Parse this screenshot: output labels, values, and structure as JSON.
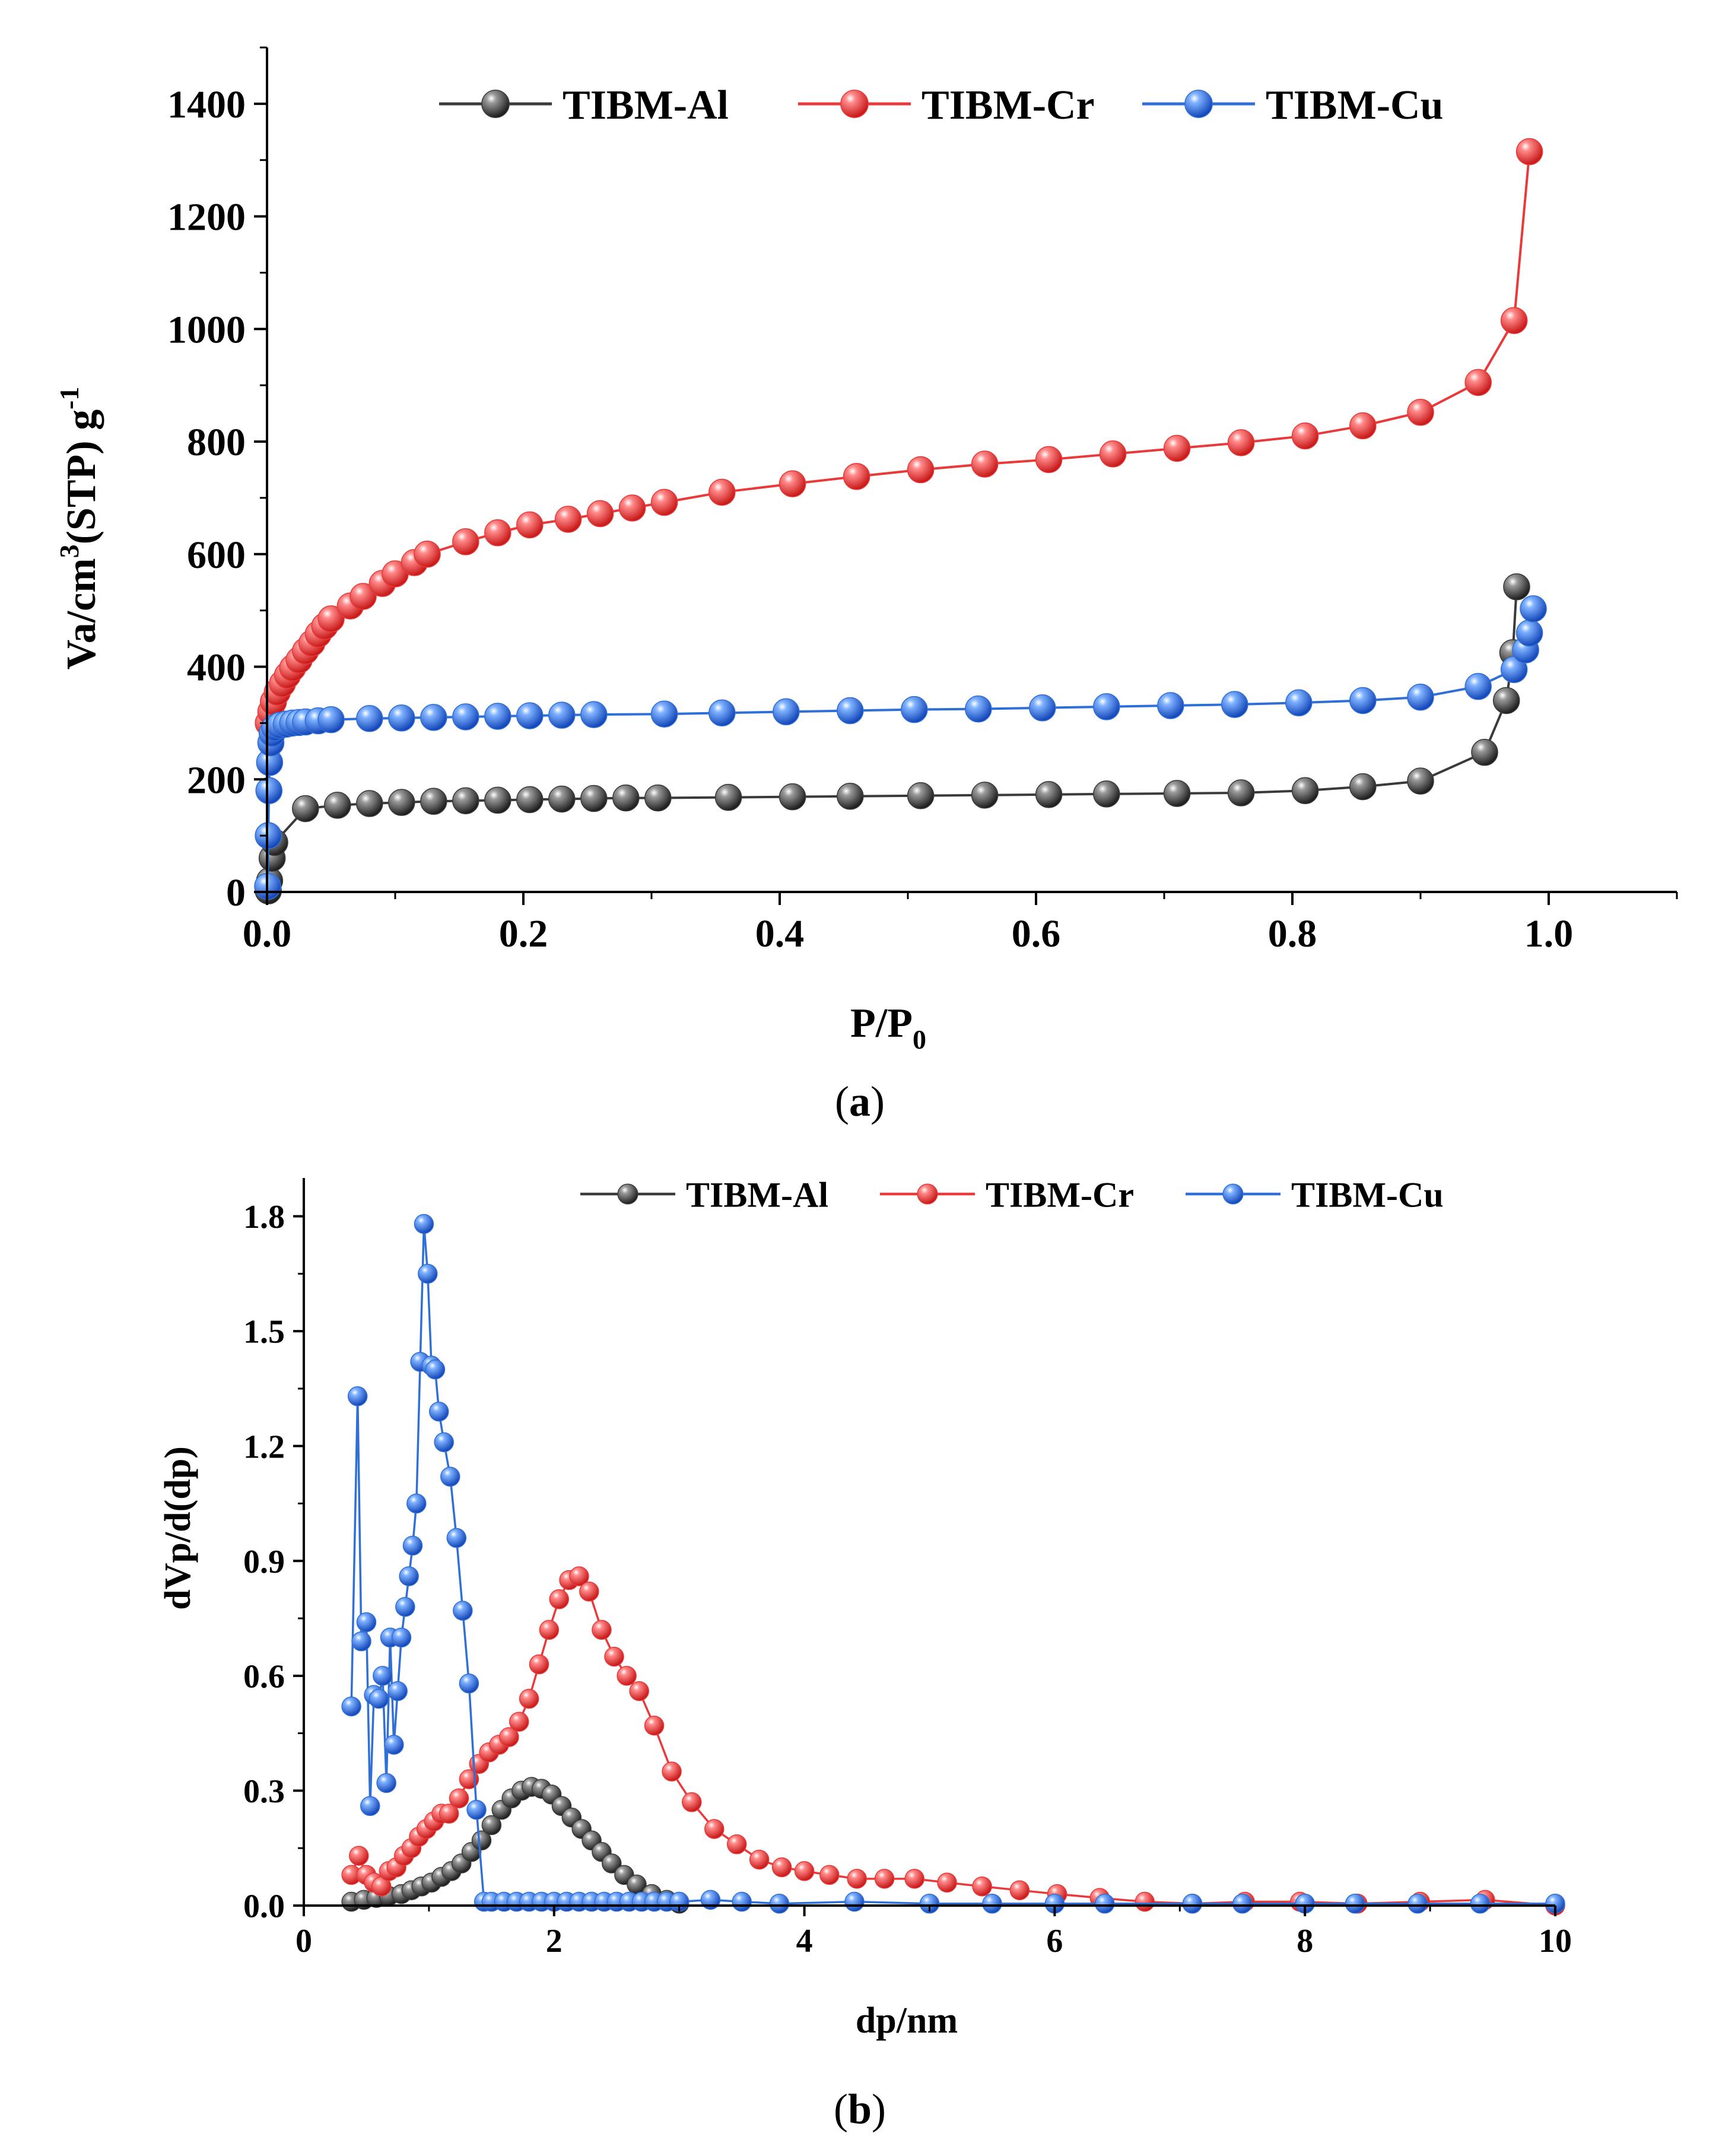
{
  "chart_data": [
    {
      "type": "line",
      "panel": "a",
      "caption_letter": "a",
      "xlabel_main": "P/P",
      "xlabel_sub": "0",
      "ylabel_pre": "Va/cm",
      "ylabel_sup1": "3",
      "ylabel_mid": "(STP) g",
      "ylabel_sup2": "-1",
      "xlim": [
        0,
        1.1
      ],
      "ylim": [
        0,
        1500
      ],
      "xticks": [
        0.0,
        0.2,
        0.4,
        0.6,
        0.8,
        1.0
      ],
      "xtick_labels": [
        "0.0",
        "0.2",
        "0.4",
        "0.6",
        "0.8",
        "1.0"
      ],
      "yticks": [
        0,
        200,
        400,
        600,
        800,
        1000,
        1200,
        1400
      ],
      "ytick_labels": [
        "0",
        "200",
        "400",
        "600",
        "800",
        "1000",
        "1200",
        "1400"
      ],
      "legend_position": "top",
      "series": [
        {
          "name": "TIBM-Al",
          "color": "#3a3a3a",
          "x": [
            0.001,
            0.002,
            0.004,
            0.006,
            0.03,
            0.055,
            0.08,
            0.105,
            0.13,
            0.155,
            0.18,
            0.205,
            0.23,
            0.255,
            0.28,
            0.305,
            0.36,
            0.41,
            0.455,
            0.51,
            0.56,
            0.61,
            0.655,
            0.71,
            0.76,
            0.81,
            0.855,
            0.9,
            0.95,
            0.967,
            0.972,
            0.975
          ],
          "y": [
            2,
            20,
            60,
            88,
            148,
            154,
            157,
            159,
            161,
            162,
            163,
            164,
            165,
            166,
            167,
            167,
            168,
            169,
            170,
            171,
            172,
            173,
            174,
            175,
            176,
            180,
            187,
            197,
            248,
            340,
            425,
            542
          ]
        },
        {
          "name": "TIBM-Cr",
          "color": "#e83a3a",
          "x": [
            0.001,
            0.003,
            0.005,
            0.008,
            0.012,
            0.016,
            0.02,
            0.025,
            0.03,
            0.035,
            0.04,
            0.045,
            0.05,
            0.065,
            0.075,
            0.09,
            0.1,
            0.115,
            0.125,
            0.155,
            0.18,
            0.205,
            0.235,
            0.26,
            0.285,
            0.31,
            0.355,
            0.41,
            0.46,
            0.51,
            0.56,
            0.61,
            0.66,
            0.71,
            0.76,
            0.81,
            0.855,
            0.9,
            0.945,
            0.973,
            0.985
          ],
          "y": [
            300,
            320,
            338,
            355,
            370,
            385,
            398,
            412,
            428,
            442,
            458,
            472,
            485,
            508,
            525,
            548,
            565,
            585,
            600,
            622,
            638,
            652,
            662,
            672,
            682,
            692,
            710,
            725,
            738,
            750,
            760,
            768,
            778,
            788,
            798,
            810,
            828,
            852,
            905,
            1015,
            1315
          ]
        },
        {
          "name": "TIBM-Cu",
          "color": "#2f6fd6",
          "x": [
            0.0005,
            0.001,
            0.0015,
            0.002,
            0.003,
            0.004,
            0.006,
            0.01,
            0.015,
            0.02,
            0.025,
            0.03,
            0.04,
            0.05,
            0.08,
            0.105,
            0.13,
            0.155,
            0.18,
            0.205,
            0.23,
            0.255,
            0.31,
            0.355,
            0.405,
            0.455,
            0.505,
            0.555,
            0.605,
            0.655,
            0.705,
            0.755,
            0.805,
            0.855,
            0.9,
            0.945,
            0.973,
            0.982,
            0.985,
            0.988
          ],
          "y": [
            10,
            100,
            180,
            230,
            265,
            282,
            292,
            296,
            298,
            300,
            301,
            302,
            304,
            306,
            308,
            309,
            310,
            311,
            312,
            313,
            314,
            315,
            316,
            318,
            320,
            322,
            324,
            325,
            327,
            329,
            331,
            333,
            336,
            340,
            346,
            365,
            395,
            430,
            460,
            503
          ]
        }
      ]
    },
    {
      "type": "line",
      "panel": "b",
      "caption_letter": "b",
      "xlabel": "dp/nm",
      "ylabel": "dVp/d(dp)",
      "xlim": [
        0,
        10
      ],
      "ylim": [
        0,
        1.9
      ],
      "xticks": [
        0,
        2,
        4,
        6,
        8,
        10
      ],
      "xtick_labels": [
        "0",
        "2",
        "4",
        "6",
        "8",
        "10"
      ],
      "yticks": [
        0.0,
        0.3,
        0.6,
        0.9,
        1.2,
        1.5,
        1.8
      ],
      "ytick_labels": [
        "0.0",
        "0.3",
        "0.6",
        "0.9",
        "1.2",
        "1.5",
        "1.8"
      ],
      "legend_position": "top",
      "series": [
        {
          "name": "TIBM-Al",
          "color": "#3a3a3a",
          "x": [
            0.38,
            0.48,
            0.58,
            0.68,
            0.78,
            0.86,
            0.94,
            1.02,
            1.1,
            1.18,
            1.26,
            1.34,
            1.42,
            1.5,
            1.58,
            1.66,
            1.74,
            1.82,
            1.9,
            1.98,
            2.06,
            2.14,
            2.22,
            2.3,
            2.38,
            2.46,
            2.56,
            2.66,
            2.78,
            2.9,
            3.0
          ],
          "y": [
            0.01,
            0.015,
            0.02,
            0.025,
            0.03,
            0.04,
            0.05,
            0.06,
            0.075,
            0.09,
            0.11,
            0.14,
            0.17,
            0.21,
            0.25,
            0.28,
            0.3,
            0.31,
            0.305,
            0.29,
            0.26,
            0.23,
            0.2,
            0.17,
            0.14,
            0.11,
            0.08,
            0.055,
            0.03,
            0.015,
            0.005
          ]
        },
        {
          "name": "TIBM-Cr",
          "color": "#e83a3a",
          "x": [
            0.38,
            0.44,
            0.5,
            0.56,
            0.62,
            0.68,
            0.74,
            0.8,
            0.86,
            0.92,
            0.98,
            1.04,
            1.1,
            1.16,
            1.24,
            1.32,
            1.4,
            1.48,
            1.56,
            1.64,
            1.72,
            1.8,
            1.88,
            1.96,
            2.04,
            2.12,
            2.2,
            2.28,
            2.38,
            2.48,
            2.58,
            2.68,
            2.8,
            2.94,
            3.1,
            3.28,
            3.46,
            3.64,
            3.82,
            4.0,
            4.2,
            4.42,
            4.64,
            4.88,
            5.14,
            5.42,
            5.72,
            6.02,
            6.36,
            6.72,
            7.1,
            7.52,
            7.96,
            8.42,
            8.92,
            9.44,
            10.0
          ],
          "y": [
            0.08,
            0.13,
            0.08,
            0.06,
            0.05,
            0.09,
            0.1,
            0.13,
            0.15,
            0.18,
            0.2,
            0.22,
            0.24,
            0.24,
            0.28,
            0.33,
            0.37,
            0.4,
            0.42,
            0.44,
            0.48,
            0.54,
            0.63,
            0.72,
            0.8,
            0.85,
            0.86,
            0.82,
            0.72,
            0.65,
            0.6,
            0.56,
            0.47,
            0.35,
            0.27,
            0.2,
            0.16,
            0.12,
            0.1,
            0.09,
            0.08,
            0.07,
            0.07,
            0.07,
            0.06,
            0.05,
            0.04,
            0.03,
            0.02,
            0.01,
            0.005,
            0.01,
            0.01,
            0.005,
            0.01,
            0.015,
            0.0
          ]
        },
        {
          "name": "TIBM-Cu",
          "color": "#2f6fd6",
          "x": [
            0.38,
            0.43,
            0.46,
            0.5,
            0.53,
            0.56,
            0.6,
            0.63,
            0.66,
            0.69,
            0.72,
            0.75,
            0.78,
            0.81,
            0.84,
            0.87,
            0.9,
            0.93,
            0.96,
            0.99,
            1.02,
            1.05,
            1.08,
            1.12,
            1.17,
            1.22,
            1.27,
            1.32,
            1.38,
            1.44,
            1.5,
            1.6,
            1.7,
            1.8,
            1.9,
            2.0,
            2.1,
            2.2,
            2.3,
            2.4,
            2.5,
            2.6,
            2.7,
            2.8,
            2.9,
            3.0,
            3.25,
            3.5,
            3.8,
            4.4,
            5.0,
            5.5,
            6.0,
            6.4,
            7.1,
            7.5,
            8.0,
            8.4,
            8.9,
            9.4,
            10.0
          ],
          "y": [
            0.52,
            1.33,
            0.69,
            0.74,
            0.26,
            0.55,
            0.54,
            0.6,
            0.32,
            0.7,
            0.42,
            0.56,
            0.7,
            0.78,
            0.86,
            0.94,
            1.05,
            1.42,
            1.78,
            1.65,
            1.41,
            1.4,
            1.29,
            1.21,
            1.12,
            0.96,
            0.77,
            0.58,
            0.25,
            0.01,
            0.01,
            0.01,
            0.01,
            0.01,
            0.01,
            0.01,
            0.01,
            0.01,
            0.01,
            0.01,
            0.01,
            0.01,
            0.01,
            0.01,
            0.01,
            0.01,
            0.015,
            0.01,
            0.005,
            0.01,
            0.005,
            0.005,
            0.005,
            0.005,
            0.005,
            0.005,
            0.005,
            0.005,
            0.005,
            0.005,
            0.005
          ]
        }
      ]
    }
  ]
}
